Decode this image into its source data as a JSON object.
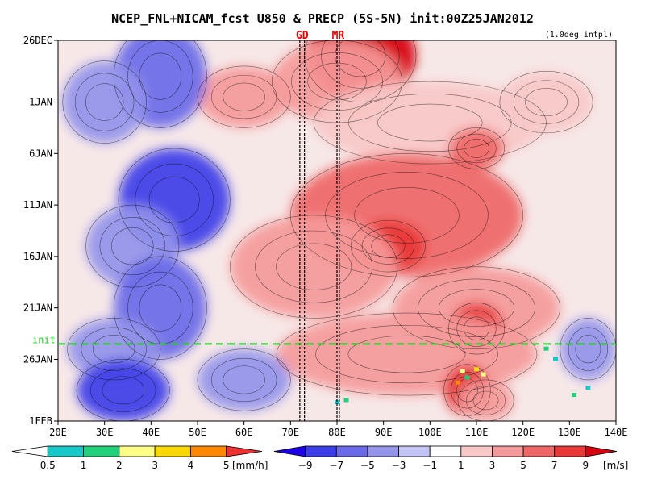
{
  "chart_data": {
    "type": "heatmap",
    "title": "NCEP_FNL+NICAM_fcst U850 & PRECP (5S-5N) init:00Z25JAN2012",
    "subtitle": "(1.0deg intpl)",
    "x_ticks": [
      "20E",
      "30E",
      "40E",
      "50E",
      "60E",
      "70E",
      "80E",
      "90E",
      "100E",
      "110E",
      "120E",
      "130E",
      "140E"
    ],
    "x_range": [
      20,
      140
    ],
    "y_ticks": [
      "26DEC",
      "1JAN",
      "6JAN",
      "11JAN",
      "16JAN",
      "21JAN",
      "26JAN",
      "1FEB"
    ],
    "y_range_days": [
      0,
      37
    ],
    "init_label": "init",
    "init_day": 29.5,
    "markers": [
      {
        "label": "GD",
        "lons": [
          72,
          73
        ]
      },
      {
        "label": "MR",
        "lons": [
          80,
          80.5
        ]
      }
    ],
    "wind_colorbar": {
      "labels": [
        "−9",
        "−7",
        "−5",
        "−3",
        "−1",
        "1",
        "3",
        "5",
        "7",
        "9"
      ],
      "unit": "[m/s]",
      "colors": [
        "#1d00e6",
        "#3e3ee8",
        "#6a6ae8",
        "#9494ea",
        "#c4c4f4",
        "#ffffff",
        "#f9c8c8",
        "#f59a9a",
        "#ef6666",
        "#e83838",
        "#d8000e"
      ]
    },
    "precip_colorbar": {
      "labels": [
        "0.5",
        "1",
        "2",
        "3",
        "4",
        "5"
      ],
      "unit": "[mm/h]",
      "colors": [
        "#ffffff",
        "#17c8c8",
        "#22d07c",
        "#ffff88",
        "#f8d800",
        "#ff8800",
        "#ee3030"
      ]
    },
    "wind_blobs": [
      {
        "x": 85,
        "y": 1.5,
        "rx": 12,
        "ry": 4.5,
        "v": 11
      },
      {
        "x": 80,
        "y": 4,
        "rx": 14,
        "ry": 4,
        "v": 5
      },
      {
        "x": 60,
        "y": 5.5,
        "rx": 10,
        "ry": 3,
        "v": 3.5
      },
      {
        "x": 100,
        "y": 8,
        "rx": 25,
        "ry": 4,
        "v": 3
      },
      {
        "x": 110,
        "y": 10.5,
        "rx": 6,
        "ry": 2,
        "v": 6
      },
      {
        "x": 125,
        "y": 6,
        "rx": 10,
        "ry": 3,
        "v": 3
      },
      {
        "x": 95,
        "y": 17,
        "rx": 25,
        "ry": 6,
        "v": 5.5
      },
      {
        "x": 91,
        "y": 20,
        "rx": 8,
        "ry": 2.5,
        "v": 8
      },
      {
        "x": 75,
        "y": 22,
        "rx": 18,
        "ry": 5,
        "v": 3.5
      },
      {
        "x": 110,
        "y": 26,
        "rx": 18,
        "ry": 4,
        "v": 5
      },
      {
        "x": 110,
        "y": 28,
        "rx": 6,
        "ry": 2.5,
        "v": 9
      },
      {
        "x": 95,
        "y": 30.5,
        "rx": 28,
        "ry": 4,
        "v": 4
      },
      {
        "x": 108,
        "y": 34,
        "rx": 5,
        "ry": 2.5,
        "v": 9
      },
      {
        "x": 112,
        "y": 35,
        "rx": 6,
        "ry": 2,
        "v": 5
      },
      {
        "x": 42,
        "y": 3.5,
        "rx": 10,
        "ry": 5,
        "v": -5
      },
      {
        "x": 30,
        "y": 6,
        "rx": 9,
        "ry": 4,
        "v": -3
      },
      {
        "x": 45,
        "y": 15.5,
        "rx": 12,
        "ry": 5,
        "v": -7.5
      },
      {
        "x": 36,
        "y": 20,
        "rx": 10,
        "ry": 4,
        "v": -4
      },
      {
        "x": 42,
        "y": 26,
        "rx": 10,
        "ry": 5,
        "v": -5
      },
      {
        "x": 32,
        "y": 30,
        "rx": 10,
        "ry": 3,
        "v": -4
      },
      {
        "x": 34,
        "y": 34,
        "rx": 10,
        "ry": 3,
        "v": -7
      },
      {
        "x": 60,
        "y": 33,
        "rx": 10,
        "ry": 3,
        "v": -3
      },
      {
        "x": 134,
        "y": 30,
        "rx": 6,
        "ry": 3,
        "v": -3
      }
    ]
  }
}
